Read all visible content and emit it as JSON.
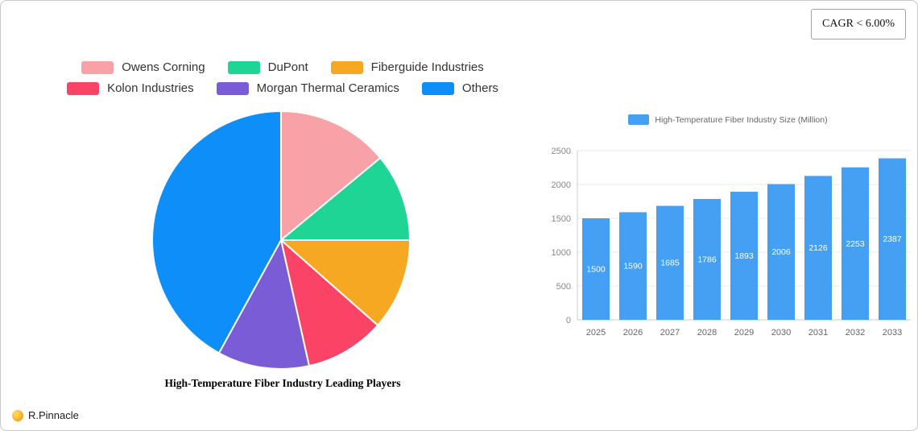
{
  "badge": {
    "cagr": "CAGR < 6.00%"
  },
  "logo": {
    "text": "R.Pinnacle"
  },
  "chart_data": [
    {
      "type": "pie",
      "title": "High-Temperature Fiber Industry Leading Players",
      "legend_position": "top",
      "slices": [
        {
          "label": "Owens Corning",
          "value": 14,
          "color": "#F8A1A7"
        },
        {
          "label": "DuPont",
          "value": 11,
          "color": "#1ED596"
        },
        {
          "label": "Fiberguide Industries",
          "value": 11.5,
          "color": "#F7A823"
        },
        {
          "label": "Kolon Industries",
          "value": 10,
          "color": "#FA4365"
        },
        {
          "label": "Morgan Thermal Ceramics",
          "value": 11.5,
          "color": "#7A5CD6"
        },
        {
          "label": "Others",
          "value": 42,
          "color": "#0D8EF8"
        }
      ]
    },
    {
      "type": "bar",
      "legend": "High-Temperature Fiber Industry Size (Million)",
      "categories": [
        "2025",
        "2026",
        "2027",
        "2028",
        "2029",
        "2030",
        "2031",
        "2032",
        "2033"
      ],
      "values": [
        1500,
        1590,
        1685,
        1786,
        1893,
        2006,
        2126,
        2253,
        2387
      ],
      "bar_color": "#45A0F3",
      "ylabel": "",
      "ylim": [
        0,
        2500
      ],
      "ytick_step": 500,
      "grid": true
    }
  ]
}
